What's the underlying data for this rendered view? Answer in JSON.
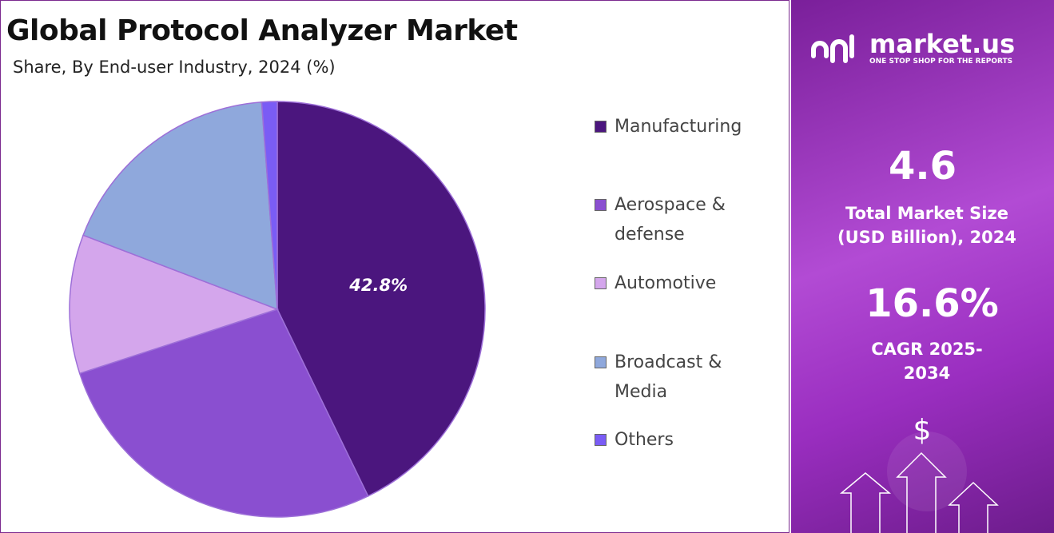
{
  "chart_data": {
    "type": "pie",
    "title": "Global Protocol Analyzer Market",
    "subtitle": "Share, By End-user Industry, 2024 (%)",
    "categories": [
      "Manufacturing",
      "Aerospace & defense",
      "Automotive",
      "Broadcast & Media",
      "Others"
    ],
    "values": [
      42.8,
      27.2,
      10.8,
      18.0,
      1.2
    ],
    "value_labels": [
      "42.8%",
      null,
      null,
      null,
      null
    ],
    "colors": [
      "#4b167e",
      "#8a4fd0",
      "#d4a6ec",
      "#8fa8dc",
      "#7a5cf5"
    ],
    "legend": "right"
  },
  "panel": {
    "brand": "market.us",
    "tagline": "ONE STOP SHOP FOR THE REPORTS",
    "market_size": "4.6",
    "market_size_label": "Total Market Size (USD Billion), 2024",
    "cagr": "16.6%",
    "cagr_label": "CAGR 2025-2034"
  }
}
